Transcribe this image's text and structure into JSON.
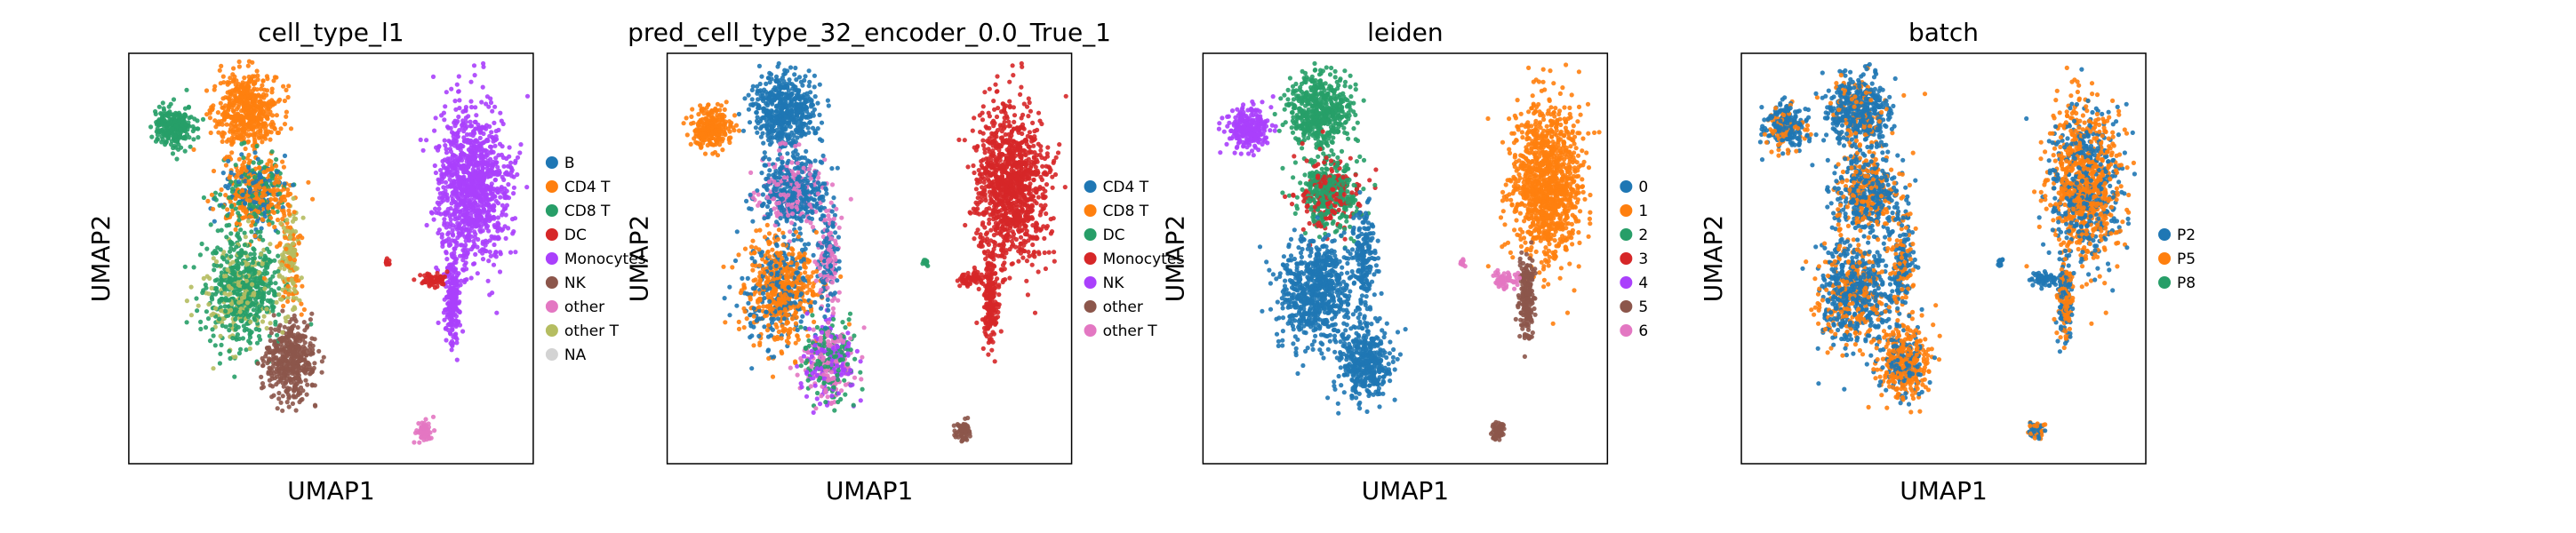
{
  "figure": {
    "panels": [
      {
        "title": "cell_type_l1",
        "xlabel": "UMAP1",
        "ylabel": "UMAP2",
        "legend": [
          {
            "label": "B",
            "color": "#1f77b4"
          },
          {
            "label": "CD4 T",
            "color": "#ff7f0e"
          },
          {
            "label": "CD8 T",
            "color": "#279e68"
          },
          {
            "label": "DC",
            "color": "#d62728"
          },
          {
            "label": "Monocytes",
            "color": "#aa40fc"
          },
          {
            "label": "NK",
            "color": "#8c564b"
          },
          {
            "label": "other",
            "color": "#e377c2"
          },
          {
            "label": "other T",
            "color": "#b5bd61"
          },
          {
            "label": "NA",
            "color": "#d3d3d3"
          }
        ]
      },
      {
        "title": "pred_cell_type_32_encoder_0.0_True_1",
        "xlabel": "UMAP1",
        "ylabel": "UMAP2",
        "legend": [
          {
            "label": "CD4 T",
            "color": "#1f77b4"
          },
          {
            "label": "CD8 T",
            "color": "#ff7f0e"
          },
          {
            "label": "DC",
            "color": "#279e68"
          },
          {
            "label": "Monocytes",
            "color": "#d62728"
          },
          {
            "label": "NK",
            "color": "#aa40fc"
          },
          {
            "label": "other",
            "color": "#8c564b"
          },
          {
            "label": "other T",
            "color": "#e377c2"
          }
        ]
      },
      {
        "title": "leiden",
        "xlabel": "UMAP1",
        "ylabel": "UMAP2",
        "legend": [
          {
            "label": "0",
            "color": "#1f77b4"
          },
          {
            "label": "1",
            "color": "#ff7f0e"
          },
          {
            "label": "2",
            "color": "#279e68"
          },
          {
            "label": "3",
            "color": "#d62728"
          },
          {
            "label": "4",
            "color": "#aa40fc"
          },
          {
            "label": "5",
            "color": "#8c564b"
          },
          {
            "label": "6",
            "color": "#e377c2"
          }
        ]
      },
      {
        "title": "batch",
        "xlabel": "UMAP1",
        "ylabel": "UMAP2",
        "legend": [
          {
            "label": "P2",
            "color": "#1f77b4"
          },
          {
            "label": "P5",
            "color": "#ff7f0e"
          },
          {
            "label": "P8",
            "color": "#279e68"
          }
        ]
      }
    ]
  },
  "chart_data": [
    {
      "type": "scatter",
      "title": "cell_type_l1",
      "xlabel": "UMAP1",
      "ylabel": "UMAP2",
      "grid": false,
      "ticks": false,
      "legend_position": "right",
      "series": [
        {
          "name": "B",
          "color": "#1f77b4"
        },
        {
          "name": "CD4 T",
          "color": "#ff7f0e"
        },
        {
          "name": "CD8 T",
          "color": "#279e68"
        },
        {
          "name": "DC",
          "color": "#d62728"
        },
        {
          "name": "Monocytes",
          "color": "#aa40fc"
        },
        {
          "name": "NK",
          "color": "#8c564b"
        },
        {
          "name": "other",
          "color": "#e377c2"
        },
        {
          "name": "other T",
          "color": "#b5bd61"
        },
        {
          "name": "NA",
          "color": "#d3d3d3"
        }
      ]
    },
    {
      "type": "scatter",
      "title": "pred_cell_type_32_encoder_0.0_True_1",
      "xlabel": "UMAP1",
      "ylabel": "UMAP2",
      "grid": false,
      "ticks": false,
      "legend_position": "right",
      "series": [
        {
          "name": "CD4 T",
          "color": "#1f77b4"
        },
        {
          "name": "CD8 T",
          "color": "#ff7f0e"
        },
        {
          "name": "DC",
          "color": "#279e68"
        },
        {
          "name": "Monocytes",
          "color": "#d62728"
        },
        {
          "name": "NK",
          "color": "#aa40fc"
        },
        {
          "name": "other",
          "color": "#8c564b"
        },
        {
          "name": "other T",
          "color": "#e377c2"
        }
      ]
    },
    {
      "type": "scatter",
      "title": "leiden",
      "xlabel": "UMAP1",
      "ylabel": "UMAP2",
      "grid": false,
      "ticks": false,
      "legend_position": "right",
      "series": [
        {
          "name": "0",
          "color": "#1f77b4"
        },
        {
          "name": "1",
          "color": "#ff7f0e"
        },
        {
          "name": "2",
          "color": "#279e68"
        },
        {
          "name": "3",
          "color": "#d62728"
        },
        {
          "name": "4",
          "color": "#aa40fc"
        },
        {
          "name": "5",
          "color": "#8c564b"
        },
        {
          "name": "6",
          "color": "#e377c2"
        }
      ]
    },
    {
      "type": "scatter",
      "title": "batch",
      "xlabel": "UMAP1",
      "ylabel": "UMAP2",
      "grid": false,
      "ticks": false,
      "legend_position": "right",
      "series": [
        {
          "name": "P2",
          "color": "#1f77b4"
        },
        {
          "name": "P5",
          "color": "#ff7f0e"
        },
        {
          "name": "P8",
          "color": "#279e68"
        }
      ]
    }
  ]
}
